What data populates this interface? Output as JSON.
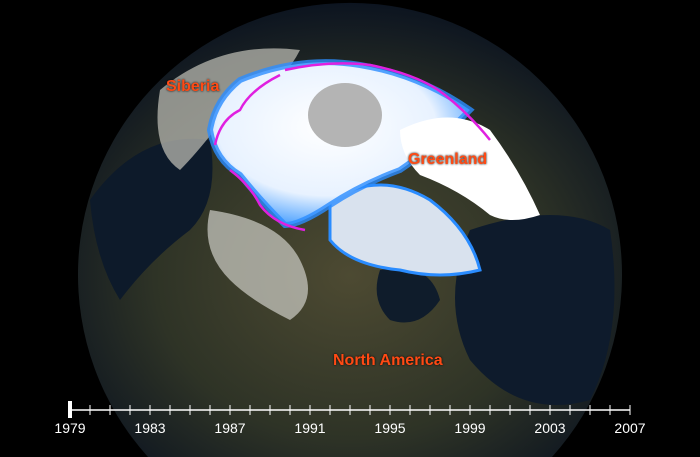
{
  "labels": {
    "siberia": "Siberia",
    "greenland": "Greenland",
    "north_america": "North America"
  },
  "timeline": {
    "start_year": 1979,
    "end_year": 2007,
    "current_year": 1979,
    "tick_labels": [
      "1979",
      "1983",
      "1987",
      "1991",
      "1995",
      "1999",
      "2003",
      "2007"
    ]
  },
  "colors": {
    "label": "#ff4a14",
    "ice_edge_average": "#e020e0",
    "ice": "#ffffff",
    "ice_margin": "#1a7fff",
    "data_gap": "#b4b4b4"
  }
}
